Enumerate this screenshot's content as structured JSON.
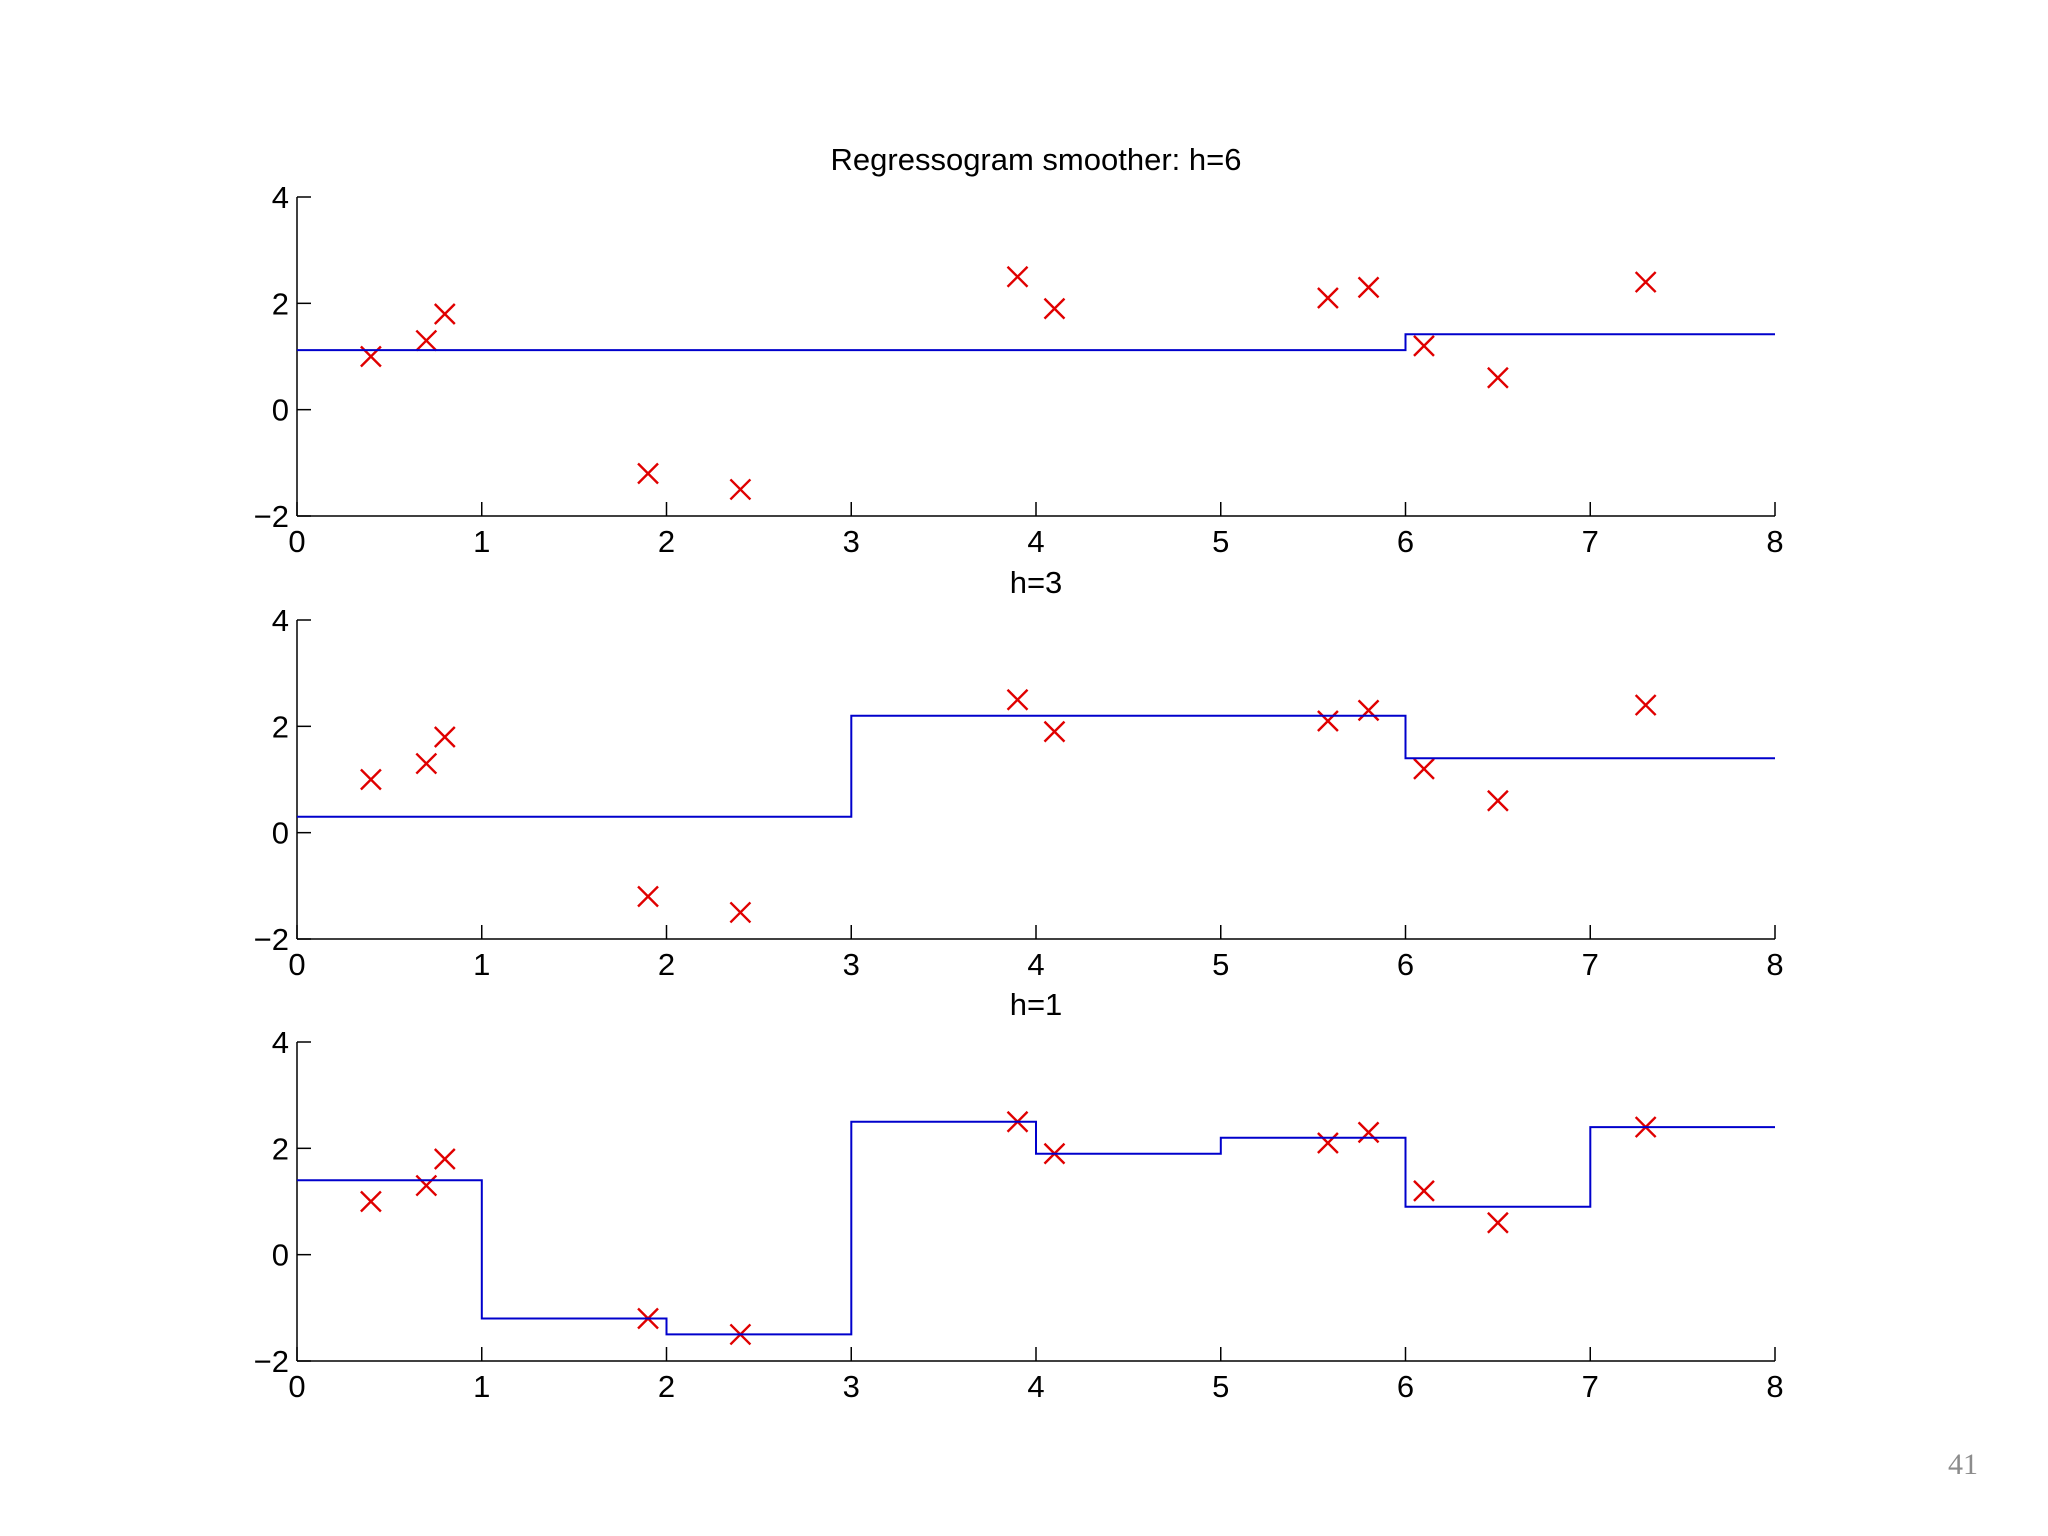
{
  "slide": {
    "number": "41"
  },
  "chart_data": [
    {
      "type": "scatter",
      "title": "Regressogram smoother: h=6",
      "xlabel": "",
      "ylabel": "",
      "xlim": [
        0,
        8
      ],
      "ylim": [
        -2,
        4
      ],
      "xticks": [
        "0",
        "1",
        "2",
        "3",
        "4",
        "5",
        "6",
        "7",
        "8"
      ],
      "yticks": [
        "4",
        "2",
        "0",
        "−2"
      ],
      "grid": false,
      "colors": {
        "points": "#e00000",
        "line": "#0000cc"
      },
      "series": [
        {
          "kind": "points",
          "marker": "x",
          "x": [
            0.4,
            0.7,
            0.8,
            1.9,
            2.4,
            3.9,
            4.1,
            5.58,
            5.8,
            6.1,
            6.5,
            7.3
          ],
          "y": [
            1.0,
            1.3,
            1.8,
            -1.2,
            -1.5,
            2.5,
            1.9,
            2.1,
            2.3,
            1.2,
            0.6,
            2.4
          ]
        },
        {
          "kind": "step",
          "x": [
            0,
            6,
            6,
            8
          ],
          "y": [
            1.12,
            1.12,
            1.42,
            1.42
          ]
        }
      ]
    },
    {
      "type": "scatter",
      "title": "h=3",
      "xlabel": "",
      "ylabel": "",
      "xlim": [
        0,
        8
      ],
      "ylim": [
        -2,
        4
      ],
      "xticks": [
        "0",
        "1",
        "2",
        "3",
        "4",
        "5",
        "6",
        "7",
        "8"
      ],
      "yticks": [
        "4",
        "2",
        "0",
        "−2"
      ],
      "grid": false,
      "colors": {
        "points": "#e00000",
        "line": "#0000cc"
      },
      "series": [
        {
          "kind": "points",
          "marker": "x",
          "x": [
            0.4,
            0.7,
            0.8,
            1.9,
            2.4,
            3.9,
            4.1,
            5.58,
            5.8,
            6.1,
            6.5,
            7.3
          ],
          "y": [
            1.0,
            1.3,
            1.8,
            -1.2,
            -1.5,
            2.5,
            1.9,
            2.1,
            2.3,
            1.2,
            0.6,
            2.4
          ]
        },
        {
          "kind": "step",
          "x": [
            0,
            3,
            3,
            6,
            6,
            8
          ],
          "y": [
            0.3,
            0.3,
            2.2,
            2.2,
            1.4,
            1.4
          ]
        }
      ]
    },
    {
      "type": "scatter",
      "title": "h=1",
      "xlabel": "",
      "ylabel": "",
      "xlim": [
        0,
        8
      ],
      "ylim": [
        -2,
        4
      ],
      "xticks": [
        "0",
        "1",
        "2",
        "3",
        "4",
        "5",
        "6",
        "7",
        "8"
      ],
      "yticks": [
        "4",
        "2",
        "0",
        "−2"
      ],
      "grid": false,
      "colors": {
        "points": "#e00000",
        "line": "#0000cc"
      },
      "series": [
        {
          "kind": "points",
          "marker": "x",
          "x": [
            0.4,
            0.7,
            0.8,
            1.9,
            2.4,
            3.9,
            4.1,
            5.58,
            5.8,
            6.1,
            6.5,
            7.3
          ],
          "y": [
            1.0,
            1.3,
            1.8,
            -1.2,
            -1.5,
            2.5,
            1.9,
            2.1,
            2.3,
            1.2,
            0.6,
            2.4
          ]
        },
        {
          "kind": "step",
          "x": [
            0,
            1,
            1,
            2,
            2,
            3,
            3,
            4,
            4,
            5,
            5,
            6,
            6,
            7,
            7,
            8
          ],
          "y": [
            1.4,
            1.4,
            -1.2,
            -1.2,
            -1.5,
            -1.5,
            2.5,
            2.5,
            1.9,
            1.9,
            2.2,
            2.2,
            0.9,
            0.9,
            2.4,
            2.4
          ]
        }
      ]
    }
  ]
}
